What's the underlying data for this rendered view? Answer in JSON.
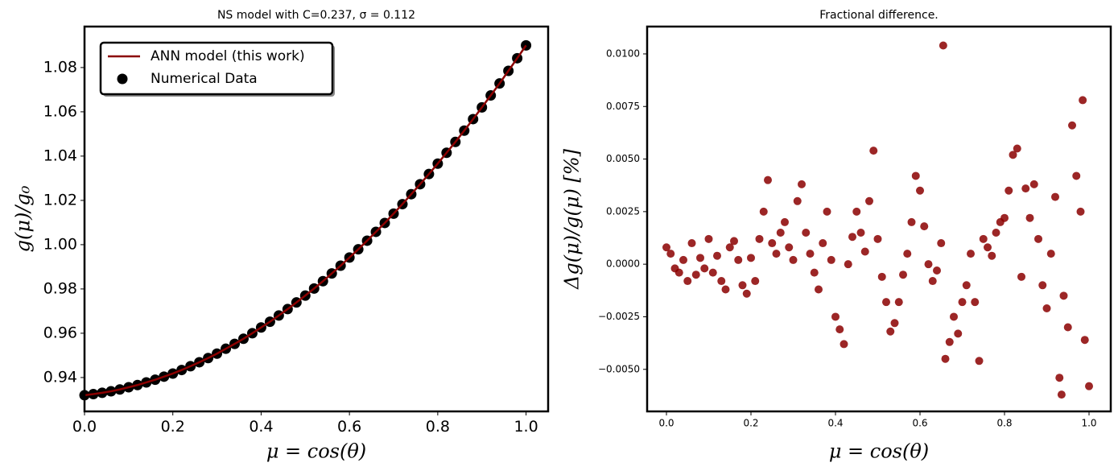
{
  "chart_data": [
    {
      "type": "line",
      "title": "NS model with C=0.237, σ = 0.112",
      "xlabel": "μ = cos(θ)",
      "ylabel": "g(μ)/g₀",
      "x": [
        0,
        0.02,
        0.04,
        0.06,
        0.08,
        0.1,
        0.12,
        0.14,
        0.16,
        0.18,
        0.2,
        0.22,
        0.24,
        0.26,
        0.28,
        0.3,
        0.32,
        0.34,
        0.36,
        0.38,
        0.4,
        0.42,
        0.44,
        0.46,
        0.48,
        0.5,
        0.52,
        0.54,
        0.56,
        0.58,
        0.6,
        0.62,
        0.64,
        0.66,
        0.68,
        0.7,
        0.72,
        0.74,
        0.76,
        0.78,
        0.8,
        0.82,
        0.84,
        0.86,
        0.88,
        0.9,
        0.92,
        0.94,
        0.96,
        0.98,
        1.0
      ],
      "series": [
        {
          "name": "ANN model (this work)",
          "kind": "line",
          "color": "#8b0000",
          "values": [
            0.932,
            0.9325,
            0.9331,
            0.9338,
            0.9346,
            0.9356,
            0.9366,
            0.9378,
            0.939,
            0.9404,
            0.9418,
            0.9434,
            0.9451,
            0.9469,
            0.9488,
            0.9508,
            0.953,
            0.9552,
            0.9575,
            0.96,
            0.9626,
            0.9652,
            0.968,
            0.9709,
            0.9739,
            0.977,
            0.9802,
            0.9835,
            0.987,
            0.9905,
            0.9942,
            0.9979,
            1.0018,
            1.0058,
            1.0098,
            1.014,
            1.0183,
            1.0228,
            1.0273,
            1.0319,
            1.0366,
            1.0415,
            1.0464,
            1.0515,
            1.0567,
            1.062,
            1.0674,
            1.0728,
            1.0785,
            1.0842,
            1.09
          ]
        },
        {
          "name": "Numerical Data",
          "kind": "scatter",
          "color": "#000000",
          "values": [
            0.932,
            0.9325,
            0.9331,
            0.9338,
            0.9346,
            0.9356,
            0.9366,
            0.9378,
            0.939,
            0.9404,
            0.9418,
            0.9434,
            0.9451,
            0.9469,
            0.9488,
            0.9508,
            0.953,
            0.9552,
            0.9575,
            0.96,
            0.9626,
            0.9652,
            0.968,
            0.9709,
            0.9739,
            0.977,
            0.9802,
            0.9835,
            0.987,
            0.9905,
            0.9942,
            0.9979,
            1.0018,
            1.0058,
            1.0098,
            1.014,
            1.0183,
            1.0228,
            1.0273,
            1.0319,
            1.0366,
            1.0415,
            1.0464,
            1.0515,
            1.0567,
            1.062,
            1.0674,
            1.0728,
            1.0785,
            1.0842,
            1.09
          ]
        }
      ],
      "xlim": [
        0,
        1.05
      ],
      "xticks": [
        {
          "value": 0,
          "label": "0.0"
        },
        {
          "value": 0.2,
          "label": "0.2"
        },
        {
          "value": 0.4,
          "label": "0.4"
        },
        {
          "value": 0.6,
          "label": "0.6"
        },
        {
          "value": 0.8,
          "label": "0.8"
        },
        {
          "value": 1,
          "label": "1.0"
        }
      ],
      "ylim": [
        0.9247,
        1.0985
      ],
      "yticks": [
        0.94,
        0.96,
        0.98,
        {
          "value": 1,
          "label": "1.00"
        },
        1.02,
        1.04,
        1.06,
        1.08
      ],
      "legend": "upper left",
      "grid": false
    },
    {
      "type": "scatter",
      "title": "Fractional difference.",
      "xlabel": "μ = cos(θ)",
      "ylabel": "Δg(μ)/g(μ)  [%]",
      "color": "#8b0000",
      "x": [
        0,
        0.01,
        0.02,
        0.03,
        0.04,
        0.05,
        0.06,
        0.07,
        0.08,
        0.09,
        0.1,
        0.11,
        0.12,
        0.13,
        0.14,
        0.15,
        0.16,
        0.17,
        0.18,
        0.19,
        0.2,
        0.21,
        0.22,
        0.23,
        0.24,
        0.25,
        0.26,
        0.27,
        0.28,
        0.29,
        0.3,
        0.31,
        0.32,
        0.33,
        0.34,
        0.35,
        0.36,
        0.37,
        0.38,
        0.39,
        0.4,
        0.41,
        0.42,
        0.43,
        0.44,
        0.45,
        0.46,
        0.47,
        0.48,
        0.49,
        0.5,
        0.51,
        0.52,
        0.53,
        0.54,
        0.55,
        0.56,
        0.57,
        0.58,
        0.59,
        0.6,
        0.61,
        0.62,
        0.63,
        0.64,
        0.65,
        0.655,
        0.66,
        0.67,
        0.68,
        0.69,
        0.7,
        0.71,
        0.72,
        0.73,
        0.74,
        0.75,
        0.76,
        0.77,
        0.78,
        0.79,
        0.8,
        0.81,
        0.82,
        0.83,
        0.84,
        0.85,
        0.86,
        0.87,
        0.88,
        0.89,
        0.9,
        0.91,
        0.92,
        0.93,
        0.935,
        0.94,
        0.95,
        0.96,
        0.97,
        0.98,
        0.985,
        0.99,
        1.0
      ],
      "values": [
        0.0008,
        0.0005,
        -0.0002,
        -0.0004,
        0.0002,
        -0.0008,
        0.001,
        -0.0005,
        0.0003,
        -0.0002,
        0.0012,
        -0.0004,
        0.0004,
        -0.0008,
        -0.0012,
        0.0008,
        0.0011,
        0.0002,
        -0.001,
        -0.0014,
        0.0003,
        -0.0008,
        0.0012,
        0.0025,
        0.004,
        0.001,
        0.0005,
        0.0015,
        0.002,
        0.0008,
        0.0002,
        0.003,
        0.0038,
        0.0015,
        0.0005,
        -0.0004,
        -0.0012,
        0.001,
        0.0025,
        0.0002,
        -0.0025,
        -0.0031,
        -0.0038,
        0,
        0.0013,
        0.0025,
        0.0015,
        0.0006,
        0.003,
        0.0054,
        0.0012,
        -0.0006,
        -0.0018,
        -0.0032,
        -0.0028,
        -0.0018,
        -0.0005,
        0.0005,
        0.002,
        0.0042,
        0.0035,
        0.0018,
        0,
        -0.0008,
        -0.0003,
        0.001,
        0.0104,
        -0.0045,
        -0.0037,
        -0.0025,
        -0.0033,
        -0.0018,
        -0.001,
        0.0005,
        -0.0018,
        -0.0046,
        0.0012,
        0.0008,
        0.0004,
        0.0015,
        0.002,
        0.0022,
        0.0035,
        0.0052,
        0.0055,
        -0.0006,
        0.0036,
        0.0022,
        0.0038,
        0.0012,
        -0.001,
        -0.0021,
        0.0005,
        0.0032,
        -0.0054,
        -0.0062,
        -0.0015,
        -0.003,
        0.0066,
        0.0042,
        0.0025,
        0.0078,
        -0.0036,
        -0.0058
      ],
      "xlim": [
        -0.0457,
        1.0514
      ],
      "xticks": [
        {
          "value": 0,
          "label": "0.0"
        },
        {
          "value": 0.2,
          "label": "0.2"
        },
        {
          "value": 0.4,
          "label": "0.4"
        },
        {
          "value": 0.6,
          "label": "0.6"
        },
        {
          "value": 0.8,
          "label": "0.8"
        },
        {
          "value": 1,
          "label": "1.0"
        }
      ],
      "ylim": [
        -0.007,
        0.0113
      ],
      "yticks": [
        {
          "value": -0.005,
          "label": "−0.0050"
        },
        {
          "value": -0.0025,
          "label": "−0.0025"
        },
        {
          "value": 0,
          "label": "0.0000"
        },
        {
          "value": 0.0025,
          "label": "0.0025"
        },
        {
          "value": 0.005,
          "label": "0.0050"
        },
        {
          "value": 0.0075,
          "label": "0.0075"
        },
        {
          "value": 0.01,
          "label": "0.0100"
        }
      ],
      "grid": false
    }
  ]
}
